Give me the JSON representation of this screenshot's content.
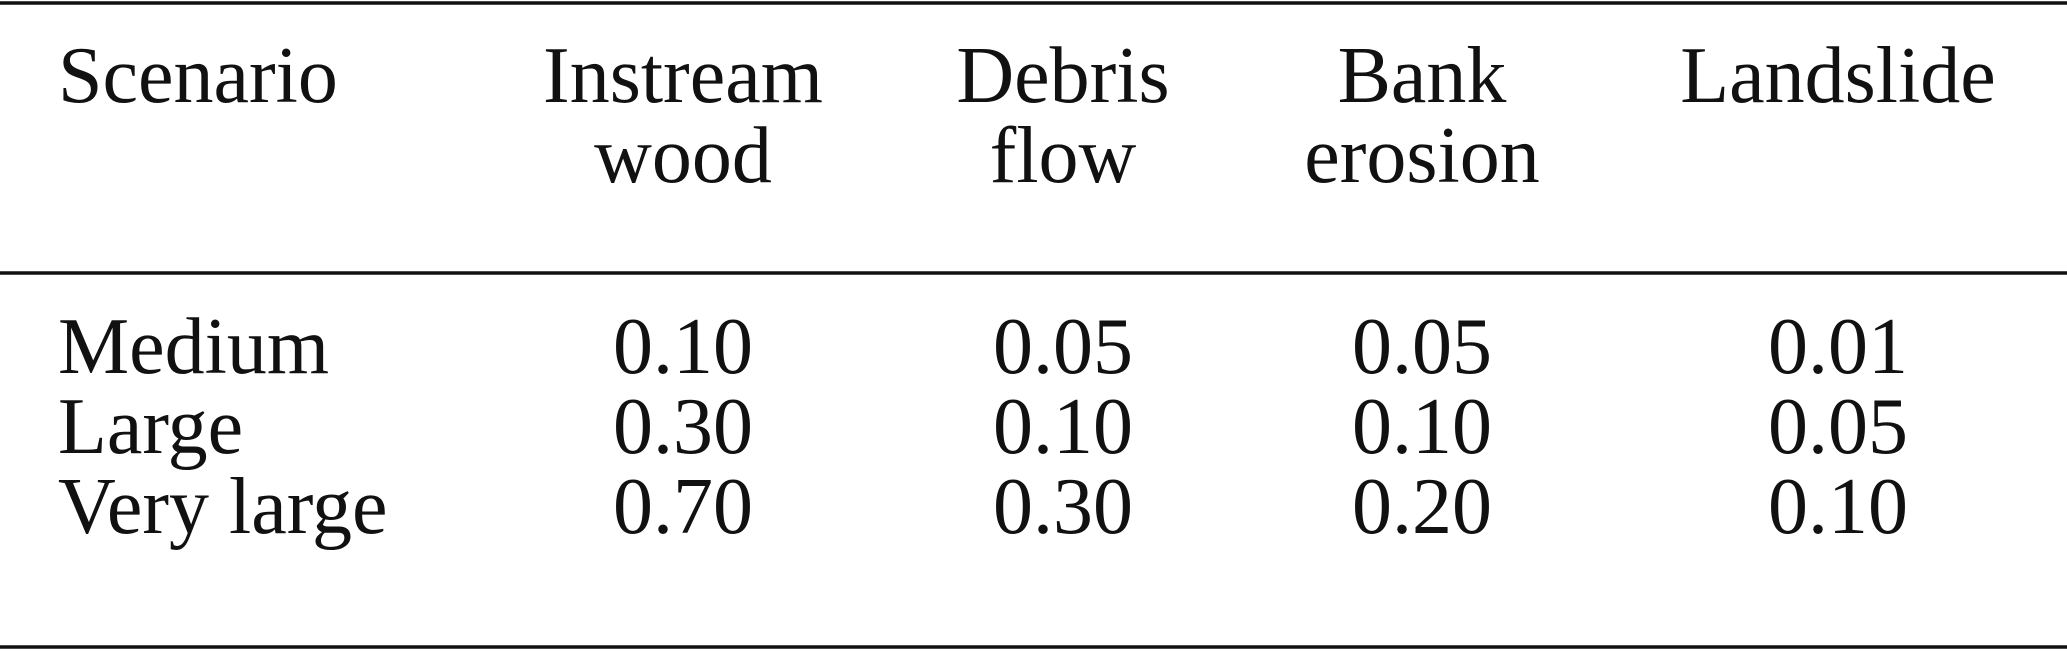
{
  "table": {
    "header": [
      [
        "Scenario"
      ],
      [
        "Instream",
        "wood"
      ],
      [
        "Debris",
        "flow"
      ],
      [
        "Bank",
        "erosion"
      ],
      [
        "Landslide"
      ]
    ],
    "rows": [
      [
        "Medium",
        "0.10",
        "0.05",
        "0.05",
        "0.01"
      ],
      [
        "Large",
        "0.30",
        "0.10",
        "0.10",
        "0.05"
      ],
      [
        "Very large",
        "0.70",
        "0.30",
        "0.20",
        "0.10"
      ]
    ]
  }
}
